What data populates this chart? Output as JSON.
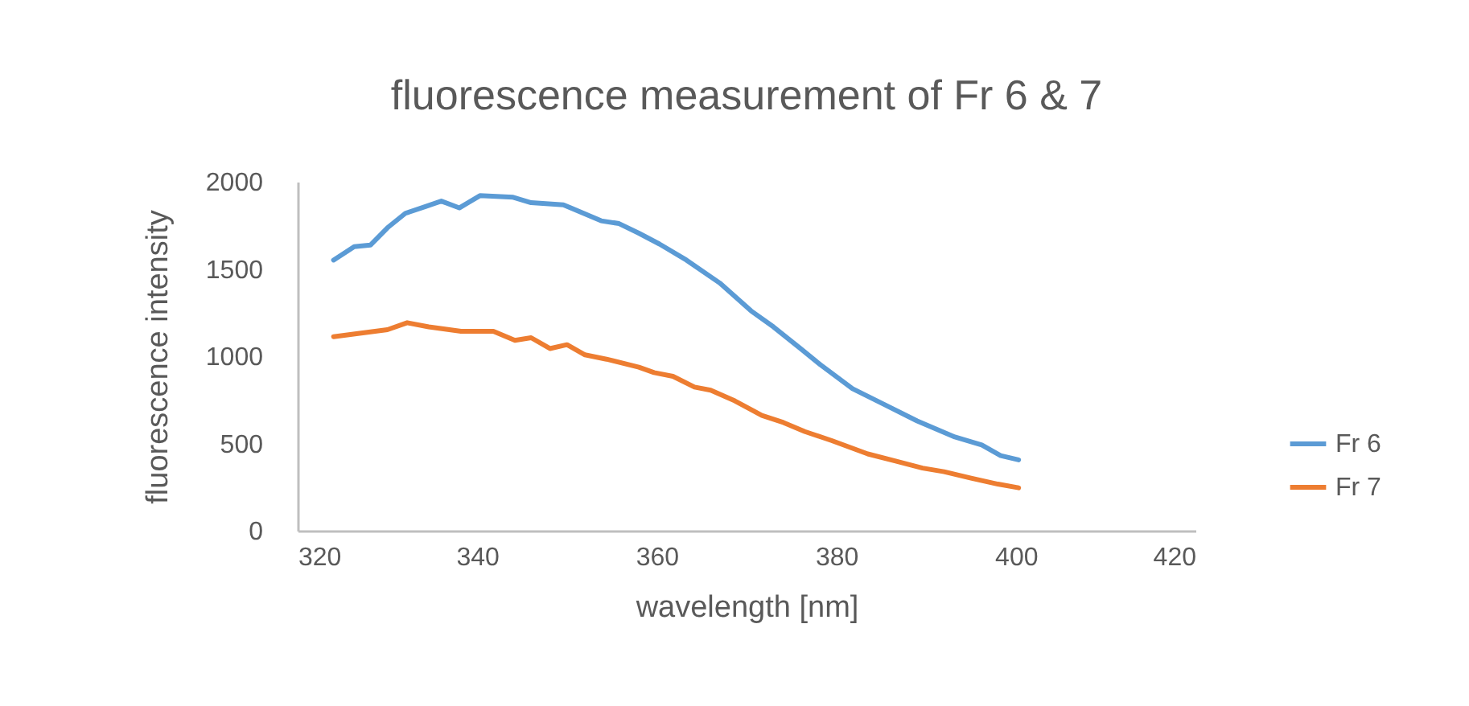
{
  "chart_data": {
    "type": "line",
    "title": "fluorescence measurement of Fr 6 & 7",
    "xlabel": "wavelength [nm]",
    "ylabel": "fluorescence intensity",
    "xlim": [
      320,
      420
    ],
    "xticks": [
      320,
      340,
      360,
      380,
      400,
      420
    ],
    "ylim": [
      0,
      2000
    ],
    "yticks": [
      0,
      500,
      1000,
      1500,
      2000
    ],
    "grid": false,
    "legend": "right",
    "marker": "none",
    "line_style": "solid",
    "series": [
      {
        "name": "Fr 6",
        "color": "#5b9bd5",
        "x": [
          324,
          326.3,
          328.1,
          330,
          332,
          334.3,
          336,
          338,
          340.3,
          344,
          346,
          349.6,
          353.8,
          355.8,
          358,
          360.3,
          363.3,
          367,
          370.5,
          373,
          376,
          378.2,
          381.8,
          385.4,
          389,
          393.2,
          396.2,
          398.3,
          400.3
        ],
        "values": [
          1551,
          1628,
          1637,
          1736,
          1819,
          1859,
          1889,
          1850,
          1920,
          1911,
          1880,
          1868,
          1776,
          1760,
          1705,
          1643,
          1551,
          1420,
          1260,
          1168,
          1044,
          952,
          814,
          722,
          629,
          537,
          491,
          430,
          406
        ]
      },
      {
        "name": "Fr 7",
        "color": "#ed7d31",
        "x": [
          324,
          326.9,
          330,
          332.2,
          334.6,
          338.2,
          341.8,
          344.2,
          346,
          348.1,
          350,
          352,
          354.4,
          358,
          359.7,
          361.8,
          364.2,
          366,
          368.7,
          371.7,
          374.1,
          376.5,
          379.5,
          383.5,
          386.6,
          389.6,
          392,
          395,
          398,
          400.3
        ],
        "values": [
          1112,
          1131,
          1152,
          1192,
          1168,
          1143,
          1143,
          1091,
          1106,
          1044,
          1066,
          1008,
          983,
          937,
          906,
          885,
          823,
          805,
          744,
          661,
          620,
          568,
          516,
          440,
          399,
          359,
          338,
          301,
          267,
          246
        ]
      }
    ]
  }
}
